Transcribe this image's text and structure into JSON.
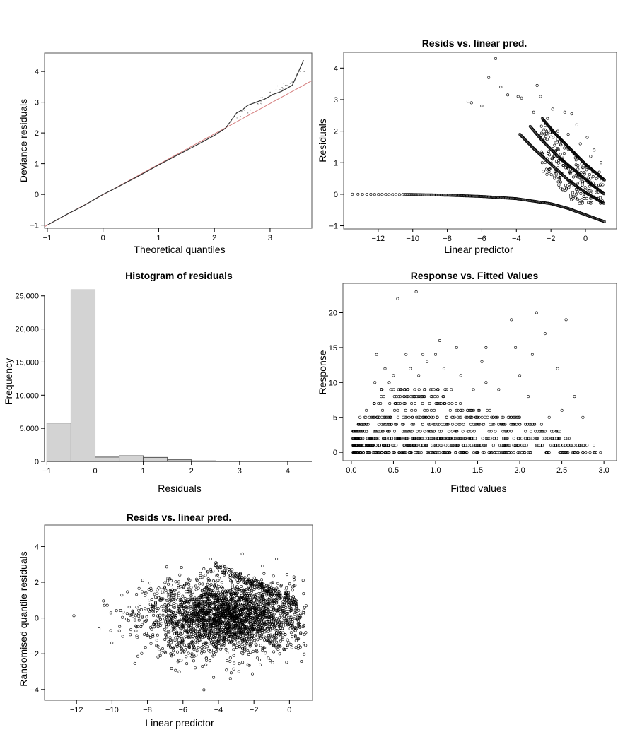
{
  "chart_data": [
    {
      "id": "qq",
      "type": "scatter",
      "title": "",
      "xlabel": "Theoretical quantiles",
      "ylabel": "Deviance residuals",
      "xlim": [
        -1.05,
        3.75
      ],
      "ylim": [
        -1.1,
        4.6
      ],
      "xticks": [
        -1,
        0,
        1,
        2,
        3
      ],
      "yticks": [
        -1,
        0,
        1,
        2,
        3,
        4
      ],
      "grid": false,
      "reference_line": {
        "from": [
          -1.05,
          -1.05
        ],
        "to": [
          3.75,
          3.7
        ],
        "color": "#d47a7a"
      },
      "points": [
        [
          -1.0,
          -1.0
        ],
        [
          -0.8,
          -0.8
        ],
        [
          -0.6,
          -0.6
        ],
        [
          -0.4,
          -0.42
        ],
        [
          -0.2,
          -0.21
        ],
        [
          0.0,
          0.0
        ],
        [
          0.2,
          0.18
        ],
        [
          0.4,
          0.37
        ],
        [
          0.6,
          0.56
        ],
        [
          0.8,
          0.76
        ],
        [
          1.0,
          0.96
        ],
        [
          1.2,
          1.15
        ],
        [
          1.4,
          1.34
        ],
        [
          1.6,
          1.53
        ],
        [
          1.8,
          1.72
        ],
        [
          2.0,
          1.92
        ],
        [
          2.2,
          2.15
        ],
        [
          2.3,
          2.4
        ],
        [
          2.4,
          2.65
        ],
        [
          2.5,
          2.75
        ],
        [
          2.6,
          2.9
        ],
        [
          2.75,
          3.0
        ],
        [
          2.9,
          3.1
        ],
        [
          3.05,
          3.25
        ],
        [
          3.2,
          3.35
        ],
        [
          3.4,
          3.55
        ],
        [
          3.6,
          4.35
        ]
      ]
    },
    {
      "id": "resid-lp",
      "type": "scatter",
      "title": "Resids vs. linear pred.",
      "xlabel": "Linear predictor",
      "ylabel": "Residuals",
      "xlim": [
        -14,
        1.8
      ],
      "ylim": [
        -1.1,
        4.5
      ],
      "xticks": [
        -12,
        -10,
        -8,
        -6,
        -4,
        -2,
        0
      ],
      "yticks": [
        -1,
        0,
        1,
        2,
        3,
        4
      ],
      "grid": false,
      "bands": [
        {
          "name_hidden": true,
          "points": [
            [
              -13.5,
              0
            ],
            [
              -10,
              -0.01
            ],
            [
              -8,
              -0.03
            ],
            [
              -6,
              -0.07
            ],
            [
              -4,
              -0.14
            ],
            [
              -2,
              -0.3
            ],
            [
              -1,
              -0.45
            ],
            [
              0,
              -0.65
            ],
            [
              1.1,
              -0.87
            ]
          ]
        },
        {
          "name_hidden": true,
          "points": [
            [
              -3.8,
              1.9
            ],
            [
              -3,
              1.45
            ],
            [
              -2,
              0.95
            ],
            [
              -1,
              0.45
            ],
            [
              0,
              0.05
            ],
            [
              1.1,
              -0.3
            ]
          ]
        },
        {
          "name_hidden": true,
          "points": [
            [
              -3.2,
              2.15
            ],
            [
              -2.5,
              1.7
            ],
            [
              -1.5,
              1.15
            ],
            [
              -0.5,
              0.7
            ],
            [
              0.5,
              0.25
            ],
            [
              1.1,
              0.0
            ]
          ]
        },
        {
          "name_hidden": true,
          "points": [
            [
              -2.5,
              2.4
            ],
            [
              -1.8,
              1.95
            ],
            [
              -1,
              1.5
            ],
            [
              0,
              0.95
            ],
            [
              1.1,
              0.45
            ]
          ]
        }
      ],
      "scatter_points": [
        [
          -6.8,
          2.95
        ],
        [
          -6.6,
          2.9
        ],
        [
          -6.0,
          2.8
        ],
        [
          -5.6,
          3.7
        ],
        [
          -5.2,
          4.3
        ],
        [
          -4.9,
          3.4
        ],
        [
          -4.5,
          3.15
        ],
        [
          -3.9,
          3.1
        ],
        [
          -3.7,
          3.05
        ],
        [
          -2.8,
          3.45
        ],
        [
          -2.6,
          3.1
        ],
        [
          -1.9,
          2.7
        ],
        [
          -1.2,
          2.6
        ],
        [
          -0.8,
          2.55
        ],
        [
          -0.5,
          2.2
        ],
        [
          0.1,
          1.8
        ],
        [
          0.5,
          1.4
        ],
        [
          0.9,
          1.0
        ],
        [
          -3.0,
          2.6
        ],
        [
          -2.2,
          2.4
        ],
        [
          -1.6,
          2.0
        ],
        [
          -1.0,
          1.9
        ],
        [
          -0.3,
          1.6
        ],
        [
          0.3,
          1.2
        ],
        [
          0.8,
          0.7
        ],
        [
          1.0,
          0.3
        ]
      ]
    },
    {
      "id": "hist",
      "type": "bar",
      "title": "Histogram of residuals",
      "xlabel": "Residuals",
      "ylabel": "Frequency",
      "xlim": [
        -1.05,
        4.5
      ],
      "ylim": [
        0,
        27000
      ],
      "xticks": [
        -1,
        0,
        1,
        2,
        3,
        4
      ],
      "yticks": [
        0,
        5000,
        10000,
        15000,
        20000,
        25000
      ],
      "ytick_labels": [
        "0",
        "5,000",
        "10,000",
        "15,000",
        "20,000",
        "25,000"
      ],
      "bin_edges": [
        -1,
        -0.5,
        0,
        0.5,
        1,
        1.5,
        2,
        2.5
      ],
      "values": [
        5800,
        25900,
        650,
        850,
        600,
        250,
        80
      ],
      "bar_color": "#d3d3d3",
      "grid": false
    },
    {
      "id": "resp-fit",
      "type": "scatter",
      "title": "Response vs. Fitted Values",
      "xlabel": "Fitted values",
      "ylabel": "Response",
      "xlim": [
        -0.1,
        3.15
      ],
      "ylim": [
        -1.2,
        24.2
      ],
      "xticks": [
        0.0,
        0.5,
        1.0,
        1.5,
        2.0,
        2.5,
        3.0
      ],
      "xtick_labels": [
        "0.0",
        "0.5",
        "1.0",
        "1.5",
        "2.0",
        "2.5",
        "3.0"
      ],
      "yticks": [
        0,
        5,
        10,
        15,
        20
      ],
      "grid": false,
      "level_rows": [
        {
          "y": 0,
          "xmin": 0.02,
          "xmax": 3.05
        },
        {
          "y": 1,
          "xmin": 0.02,
          "xmax": 2.9
        },
        {
          "y": 2,
          "xmin": 0.02,
          "xmax": 2.7
        },
        {
          "y": 3,
          "xmin": 0.02,
          "xmax": 2.6
        },
        {
          "y": 4,
          "xmin": 0.05,
          "xmax": 2.3
        },
        {
          "y": 5,
          "xmin": 0.1,
          "xmax": 2.0
        },
        {
          "y": 6,
          "xmin": 0.15,
          "xmax": 1.8
        },
        {
          "y": 7,
          "xmin": 0.25,
          "xmax": 1.3
        },
        {
          "y": 8,
          "xmin": 0.3,
          "xmax": 1.1
        },
        {
          "y": 9,
          "xmin": 0.35,
          "xmax": 1.2
        }
      ],
      "scatter_points": [
        [
          0.55,
          22
        ],
        [
          0.77,
          23
        ],
        [
          0.3,
          14
        ],
        [
          0.65,
          14
        ],
        [
          0.85,
          14
        ],
        [
          1.05,
          16
        ],
        [
          1.25,
          15
        ],
        [
          1.6,
          15
        ],
        [
          1.55,
          13
        ],
        [
          1.9,
          19
        ],
        [
          1.95,
          15
        ],
        [
          2.2,
          20
        ],
        [
          2.3,
          17
        ],
        [
          2.55,
          19
        ],
        [
          2.45,
          12
        ],
        [
          2.15,
          14
        ],
        [
          1.0,
          14
        ],
        [
          0.9,
          13
        ],
        [
          0.4,
          12
        ],
        [
          0.7,
          12
        ],
        [
          1.1,
          12
        ],
        [
          0.28,
          10
        ],
        [
          0.45,
          10
        ],
        [
          0.8,
          11
        ],
        [
          1.3,
          11
        ],
        [
          1.6,
          10
        ],
        [
          2.0,
          11
        ],
        [
          0.5,
          11
        ],
        [
          1.45,
          9
        ],
        [
          1.75,
          9
        ],
        [
          2.1,
          8
        ],
        [
          2.65,
          8
        ],
        [
          2.5,
          6
        ],
        [
          2.35,
          5
        ],
        [
          2.75,
          5
        ]
      ]
    },
    {
      "id": "rqr-lp",
      "type": "scatter",
      "title": "Resids vs. linear pred.",
      "xlabel": "Linear predictor",
      "ylabel": "Randomised quantile residuals",
      "xlim": [
        -13.8,
        1.3
      ],
      "ylim": [
        -4.6,
        5.2
      ],
      "xticks": [
        -12,
        -10,
        -8,
        -6,
        -4,
        -2,
        0
      ],
      "yticks": [
        -4,
        -2,
        0,
        2,
        4
      ],
      "grid": false,
      "cloud": {
        "center": [
          -3.5,
          0
        ],
        "sd_x": 2.3,
        "sd_y": 1.0,
        "x_range": [
          -13.5,
          1.1
        ]
      }
    }
  ]
}
